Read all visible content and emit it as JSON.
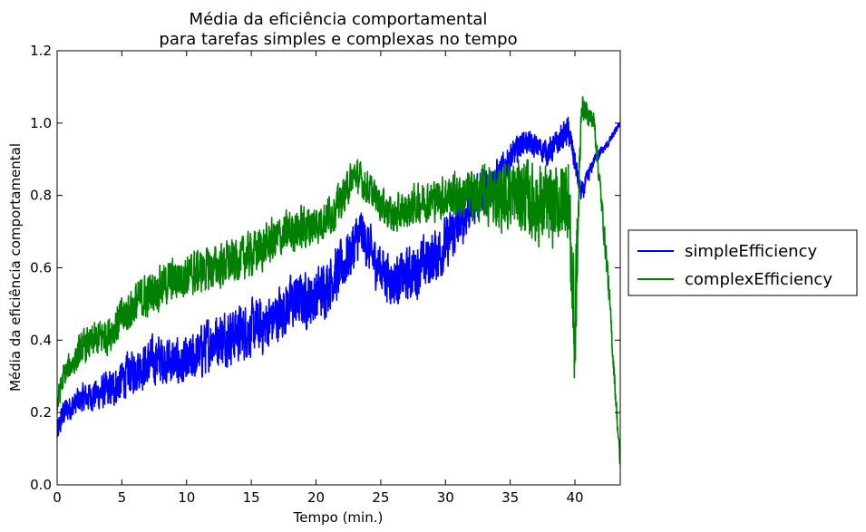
{
  "chart_data": {
    "type": "line",
    "title": "Média da eficiência comportamental",
    "subtitle": "para tarefas simples e complexas no tempo",
    "xlabel": "Tempo (min.)",
    "ylabel": "Média da eficiência comportamental",
    "xlim": [
      0,
      43.5
    ],
    "ylim": [
      0,
      1.2
    ],
    "x_ticks": [
      0,
      5,
      10,
      15,
      20,
      25,
      30,
      35,
      40
    ],
    "x_tick_labels": [
      "0",
      "5",
      "10",
      "15",
      "20",
      "25",
      "30",
      "35",
      "40"
    ],
    "y_ticks": [
      0,
      0.2,
      0.4,
      0.6,
      0.8,
      1.0,
      1.2
    ],
    "y_tick_labels": [
      "0.0",
      "0.2",
      "0.4",
      "0.6",
      "0.8",
      "1.0",
      "1.2"
    ],
    "grid": false,
    "legend_position": "outside-right",
    "series": [
      {
        "name": "simpleEfficiency",
        "color": "#0000ff",
        "x": [
          0,
          0.5,
          2,
          4,
          6,
          8,
          10,
          12,
          14,
          16,
          18,
          20,
          22,
          23.5,
          24.5,
          26,
          28,
          30,
          32,
          34,
          36,
          38,
          39.5,
          40.5,
          41.5,
          42.5,
          43.5
        ],
        "y": [
          0.14,
          0.2,
          0.24,
          0.26,
          0.32,
          0.35,
          0.33,
          0.4,
          0.42,
          0.44,
          0.5,
          0.52,
          0.6,
          0.7,
          0.62,
          0.56,
          0.6,
          0.66,
          0.78,
          0.85,
          0.95,
          0.92,
          0.98,
          0.8,
          0.9,
          0.94,
          1.0
        ],
        "spread": [
          0.05,
          0.05,
          0.05,
          0.07,
          0.08,
          0.09,
          0.09,
          0.1,
          0.1,
          0.1,
          0.1,
          0.1,
          0.1,
          0.09,
          0.09,
          0.09,
          0.1,
          0.1,
          0.09,
          0.07,
          0.04,
          0.05,
          0.05,
          0.04,
          0.02,
          0.015,
          0.01
        ]
      },
      {
        "name": "complexEfficiency",
        "color": "#008000",
        "x": [
          0,
          0.5,
          2,
          4,
          6,
          8,
          10,
          12,
          14,
          16,
          18,
          20,
          21.5,
          23,
          24.5,
          26,
          28,
          30,
          32,
          34,
          36,
          38,
          39.5,
          40,
          40.5,
          41.5,
          42.5,
          43.5
        ],
        "y": [
          0.22,
          0.3,
          0.38,
          0.42,
          0.5,
          0.55,
          0.58,
          0.6,
          0.62,
          0.66,
          0.7,
          0.72,
          0.76,
          0.86,
          0.8,
          0.74,
          0.78,
          0.8,
          0.8,
          0.8,
          0.8,
          0.76,
          0.8,
          0.4,
          1.05,
          1.0,
          0.6,
          0.05
        ],
        "spread": [
          0.05,
          0.05,
          0.06,
          0.07,
          0.08,
          0.08,
          0.08,
          0.08,
          0.08,
          0.08,
          0.08,
          0.08,
          0.07,
          0.06,
          0.06,
          0.07,
          0.07,
          0.08,
          0.09,
          0.12,
          0.14,
          0.15,
          0.15,
          0.3,
          0.04,
          0.04,
          0.05,
          0.03
        ]
      }
    ]
  }
}
